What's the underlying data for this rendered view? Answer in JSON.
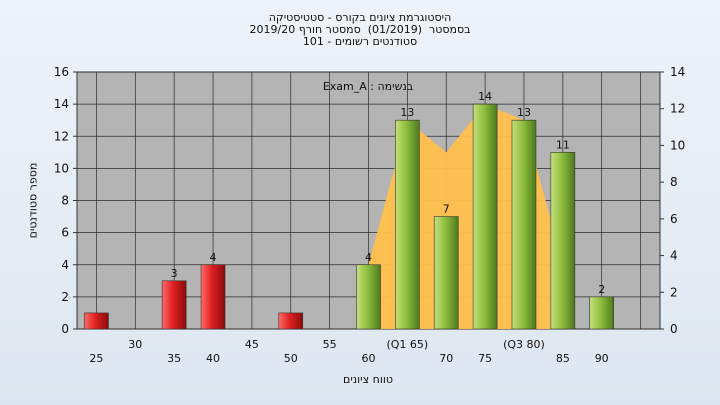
{
  "chart": {
    "title_lines": [
      "היסטוגרמת ציונים בקורס - סטטיסטיקה",
      "בסמסטר  (01/2019)  סמסטר חורף 2019/20",
      "סטודנטים רשומים - 101"
    ],
    "legend_text": "Exam_A : בנשימה",
    "colors": {
      "plot_bg": "#b4b4b4",
      "red_bar": "#e02020",
      "green_bar": "#8fbf3f",
      "area": "#ffc04d",
      "window_bg": "#e6eef6"
    }
  },
  "chart_data": {
    "type": "bar",
    "title": "היסטוגרמת ציונים בקורס - סטטיסטיקה",
    "xlabel": "טווח ציונים",
    "ylabel": "מספר סטודנטים",
    "ylim": [
      0,
      16
    ],
    "y2lim": [
      0,
      14
    ],
    "yticks": [
      0,
      2,
      4,
      6,
      8,
      10,
      12,
      14,
      16
    ],
    "y2ticks": [
      0,
      2,
      4,
      6,
      8,
      10,
      12,
      14
    ],
    "x_tick_labels_row1": [
      "25",
      "35",
      "40",
      "50",
      "60",
      "70",
      "75",
      "85",
      "90"
    ],
    "x_tick_labels_row2": [
      "30",
      "45",
      "55",
      "(Q1 65)",
      "(Q3 80)"
    ],
    "x_tick_positions_row1": [
      25,
      35,
      40,
      50,
      60,
      70,
      75,
      85,
      90
    ],
    "x_tick_positions_row2": [
      30,
      45,
      55,
      65,
      80
    ],
    "grid": true,
    "bars": [
      {
        "x": 25,
        "value": 1,
        "color": "red",
        "label": ""
      },
      {
        "x": 35,
        "value": 3,
        "color": "red",
        "label": "3"
      },
      {
        "x": 40,
        "value": 4,
        "color": "red",
        "label": "4"
      },
      {
        "x": 50,
        "value": 1,
        "color": "red",
        "label": ""
      },
      {
        "x": 60,
        "value": 4,
        "color": "green",
        "label": "4"
      },
      {
        "x": 65,
        "value": 13,
        "color": "green",
        "label": "13"
      },
      {
        "x": 70,
        "value": 7,
        "color": "green",
        "label": "7"
      },
      {
        "x": 75,
        "value": 14,
        "color": "green",
        "label": "14"
      },
      {
        "x": 80,
        "value": 13,
        "color": "green",
        "label": "13"
      },
      {
        "x": 85,
        "value": 11,
        "color": "green",
        "label": "11"
      },
      {
        "x": 90,
        "value": 2,
        "color": "green",
        "label": "2"
      }
    ],
    "area_series": {
      "x": [
        60,
        65,
        70,
        75,
        80,
        85
      ],
      "values": [
        4,
        13,
        11,
        14,
        13,
        4
      ]
    }
  }
}
